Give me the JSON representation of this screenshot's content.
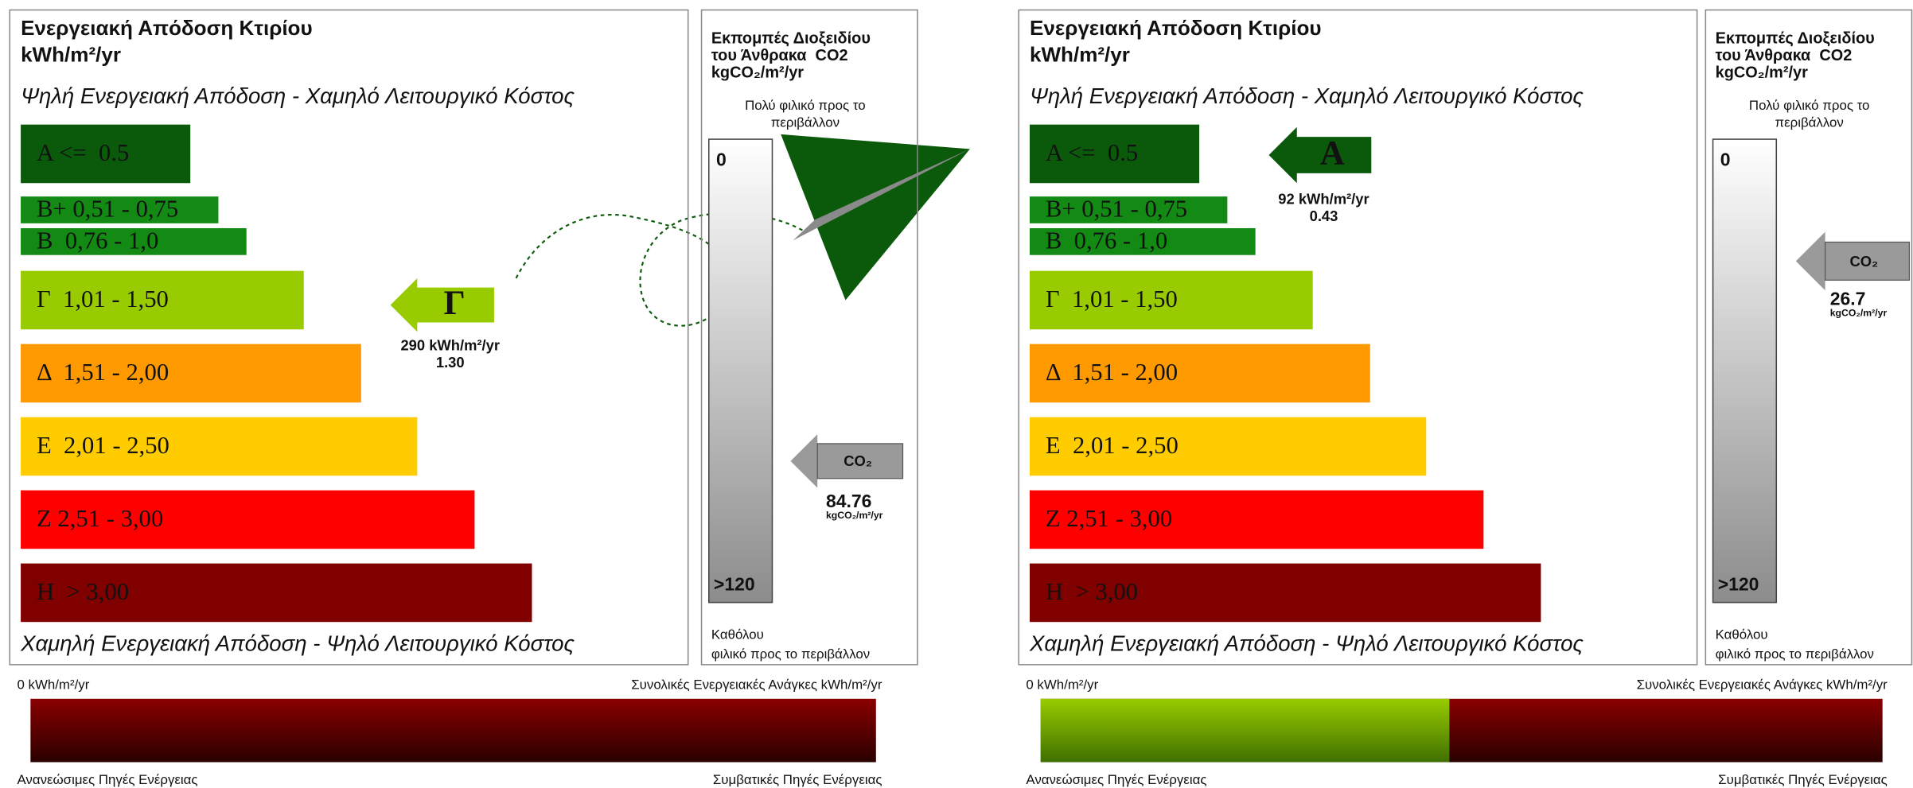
{
  "certificates": [
    {
      "title": "Ενεργειακή Απόδοση Κτιρίου",
      "unit": "kWh/m²/yr",
      "top_label": "Ψηλή Ενεργειακή Απόδοση - Χαμηλό Λειτουργικό Κόστος",
      "bands": [
        "A <=  0.5",
        "B+ 0,51 - 0,75",
        "B  0,76 - 1,0",
        "Γ  1,01 - 1,50",
        "Δ  1,51 - 2,00",
        "E  2,01 - 2,50",
        "Z 2,51 - 3,00",
        "H  > 3,00"
      ],
      "bottom_label": "Χαμηλή Ενεργειακή Απόδοση - Ψηλό Λειτουργικό Κόστος",
      "rating": "Γ",
      "energy": "290 kWh/m²/yr",
      "ratio": "1.30",
      "co2_panel": {
        "title": [
          "Εκπομπές Διοξειδίου",
          "του Άνθρακα  CO2",
          "kgCO₂/m²/yr"
        ],
        "top_label": [
          "Πολύ φιλικό προς το",
          "περιβάλλον"
        ],
        "scale_min": "0",
        "scale_max": ">120",
        "bottom_label": [
          "Καθόλου",
          "φιλικό προς το περιβάλλον"
        ],
        "arrow_label": "CO₂",
        "value": "84.76",
        "value_unit": "kgCO₂/m²/yr"
      },
      "energy_bar": {
        "left_label": "0 kWh/m²/yr",
        "right_label": "Συνολικές Ενεργειακές Ανάγκες kWh/m²/yr",
        "bottom_left": "Ανανεώσιμες Πηγές Ενέργειας",
        "bottom_right": "Συμβατικές Πηγές Ενέργειας"
      }
    },
    {
      "title": "Ενεργειακή Απόδοση Κτιρίου",
      "unit": "kWh/m²/yr",
      "top_label": "Ψηλή Ενεργειακή Απόδοση - Χαμηλό Λειτουργικό Κόστος",
      "bands": [
        "A <=  0.5",
        "B+ 0,51 - 0,75",
        "B  0,76 - 1,0",
        "Γ  1,01 - 1,50",
        "Δ  1,51 - 2,00",
        "E  2,01 - 2,50",
        "Z 2,51 - 3,00",
        "H  > 3,00"
      ],
      "bottom_label": "Χαμηλή Ενεργειακή Απόδοση - Ψηλό Λειτουργικό Κόστος",
      "rating": "A",
      "energy": "92 kWh/m²/yr",
      "ratio": "0.43",
      "co2_panel": {
        "title": [
          "Εκπομπές Διοξειδίου",
          "του Άνθρακα  CO2",
          "kgCO₂/m²/yr"
        ],
        "top_label": [
          "Πολύ φιλικό προς το",
          "περιβάλλον"
        ],
        "scale_min": "0",
        "scale_max": ">120",
        "bottom_label": [
          "Καθόλου",
          "φιλικό προς το περιβάλλον"
        ],
        "arrow_label": "CO₂",
        "value": "26.7",
        "value_unit": "kgCO₂/m²/yr"
      },
      "energy_bar": {
        "left_label": "0 kWh/m²/yr",
        "right_label": "Συνολικές Ενεργειακές Ανάγκες kWh/m²/yr",
        "bottom_left": "Ανανεώσιμες Πηγές Ενέργειας",
        "bottom_right": "Συμβατικές Πηγές Ενέργειας"
      }
    }
  ]
}
